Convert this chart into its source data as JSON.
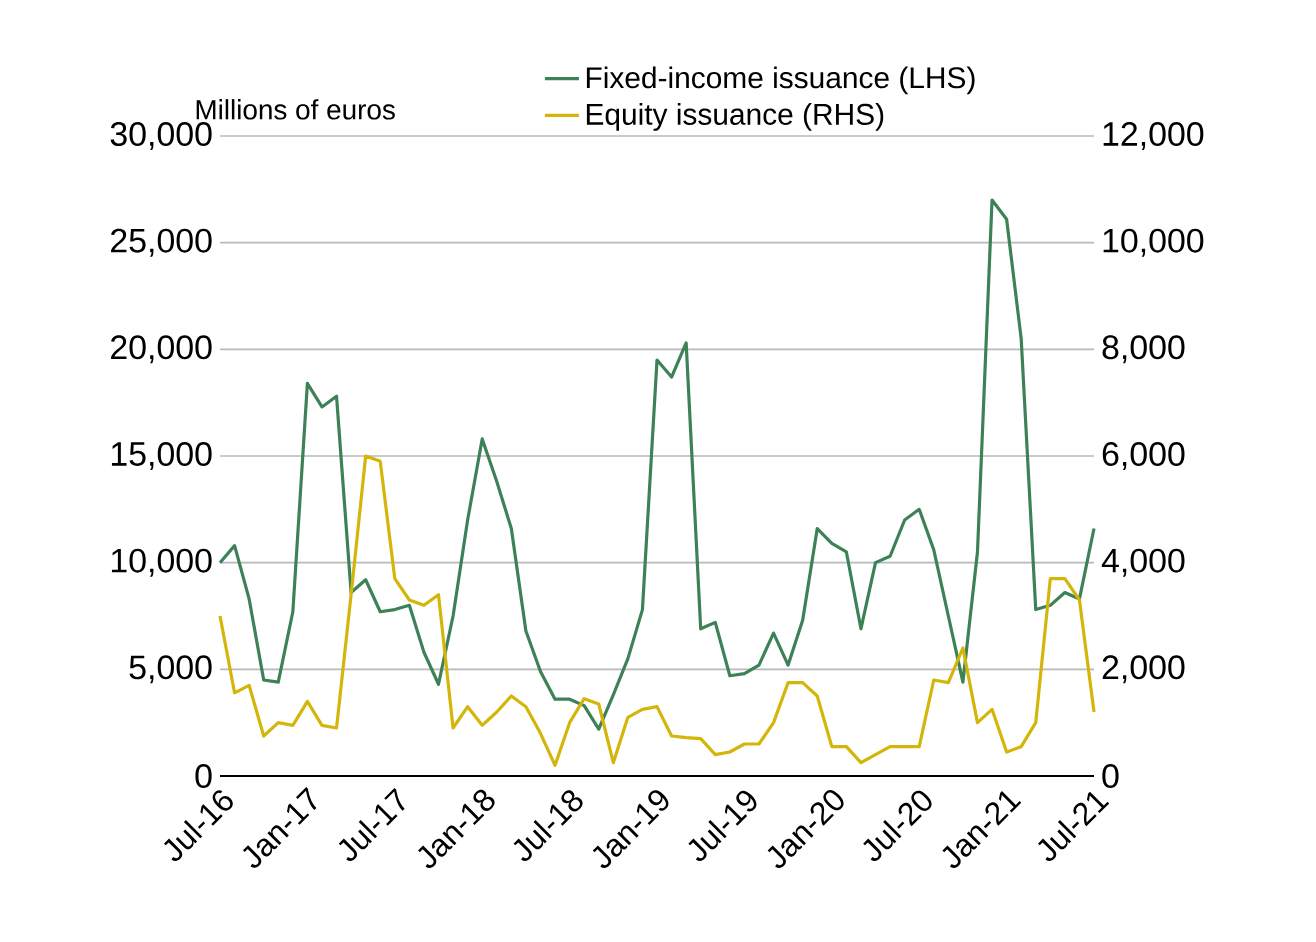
{
  "chart_data": {
    "type": "line",
    "ylabel": "Millions of euros",
    "x": [
      "2016-07",
      "2016-08",
      "2016-09",
      "2016-10",
      "2016-11",
      "2016-12",
      "2017-01",
      "2017-02",
      "2017-03",
      "2017-04",
      "2017-05",
      "2017-06",
      "2017-07",
      "2017-08",
      "2017-09",
      "2017-10",
      "2017-11",
      "2017-12",
      "2018-01",
      "2018-02",
      "2018-03",
      "2018-04",
      "2018-05",
      "2018-06",
      "2018-07",
      "2018-08",
      "2018-09",
      "2018-10",
      "2018-11",
      "2018-12",
      "2019-01",
      "2019-02",
      "2019-03",
      "2019-04",
      "2019-05",
      "2019-06",
      "2019-07",
      "2019-08",
      "2019-09",
      "2019-10",
      "2019-11",
      "2019-12",
      "2020-01",
      "2020-02",
      "2020-03",
      "2020-04",
      "2020-05",
      "2020-06",
      "2020-07",
      "2020-08",
      "2020-09",
      "2020-10",
      "2020-11",
      "2020-12",
      "2021-01",
      "2021-02",
      "2021-03",
      "2021-04",
      "2021-05",
      "2021-06",
      "2021-07"
    ],
    "series": [
      {
        "name": "Fixed-income issuance (LHS)",
        "color": "#3d8157",
        "values": [
          10000,
          10800,
          8300,
          4500,
          4400,
          7700,
          18400,
          17300,
          17800,
          8600,
          9200,
          7700,
          7800,
          8000,
          5800,
          4300,
          7500,
          12000,
          15800,
          13800,
          11600,
          6800,
          4900,
          3600,
          3600,
          3300,
          2200,
          3800,
          5500,
          7800,
          19500,
          18700,
          20300,
          6900,
          7200,
          4700,
          4800,
          5200,
          6700,
          5200,
          7300,
          11600,
          10900,
          10500,
          6900,
          10000,
          10300,
          12000,
          12500,
          10600,
          7500,
          4400,
          10500,
          27000,
          26100,
          20500,
          7800,
          8000,
          8600,
          8300,
          11600
        ]
      },
      {
        "name": "Equity issuance (RHS)",
        "color": "#d4b50a",
        "axis": "y2",
        "values": [
          3000,
          1560,
          1700,
          750,
          1000,
          950,
          1400,
          950,
          900,
          3400,
          6000,
          5900,
          3700,
          3300,
          3200,
          3400,
          900,
          1300,
          950,
          1200,
          1500,
          1300,
          800,
          200,
          1000,
          1450,
          1350,
          250,
          1100,
          1250,
          1300,
          750,
          720,
          700,
          400,
          450,
          600,
          600,
          1000,
          1750,
          1750,
          1500,
          550,
          550,
          250,
          400,
          550,
          550,
          550,
          1800,
          1750,
          2400,
          1000,
          1250,
          450,
          550,
          1000,
          3700,
          3700,
          3300,
          1200
        ]
      }
    ],
    "xlim": [
      "2016-07",
      "2021-07"
    ],
    "xticks": [
      {
        "value": "2016-07",
        "label": "Jul-16"
      },
      {
        "value": "2017-01",
        "label": "Jan-17"
      },
      {
        "value": "2017-07",
        "label": "Jul-17"
      },
      {
        "value": "2018-01",
        "label": "Jan-18"
      },
      {
        "value": "2018-07",
        "label": "Jul-18"
      },
      {
        "value": "2019-01",
        "label": "Jan-19"
      },
      {
        "value": "2019-07",
        "label": "Jul-19"
      },
      {
        "value": "2020-01",
        "label": "Jan-20"
      },
      {
        "value": "2020-07",
        "label": "Jul-20"
      },
      {
        "value": "2021-01",
        "label": "Jan-21"
      },
      {
        "value": "2021-07",
        "label": "Jul-21"
      }
    ],
    "ylim": [
      0,
      30000
    ],
    "yticks": [
      {
        "value": 0,
        "label": "0"
      },
      {
        "value": 5000,
        "label": "5,000"
      },
      {
        "value": 10000,
        "label": "10,000"
      },
      {
        "value": 15000,
        "label": "15,000"
      },
      {
        "value": 20000,
        "label": "20,000"
      },
      {
        "value": 25000,
        "label": "25,000"
      },
      {
        "value": 30000,
        "label": "30,000"
      }
    ],
    "y2lim": [
      0,
      12000
    ],
    "y2ticks": [
      {
        "value": 0,
        "label": "0"
      },
      {
        "value": 2000,
        "label": "2,000"
      },
      {
        "value": 4000,
        "label": "4,000"
      },
      {
        "value": 6000,
        "label": "6,000"
      },
      {
        "value": 8000,
        "label": "8,000"
      },
      {
        "value": 10000,
        "label": "10,000"
      },
      {
        "value": 12000,
        "label": "12,000"
      }
    ],
    "grid": "y",
    "legend": "top",
    "marker": "none",
    "line_style": "solid"
  }
}
